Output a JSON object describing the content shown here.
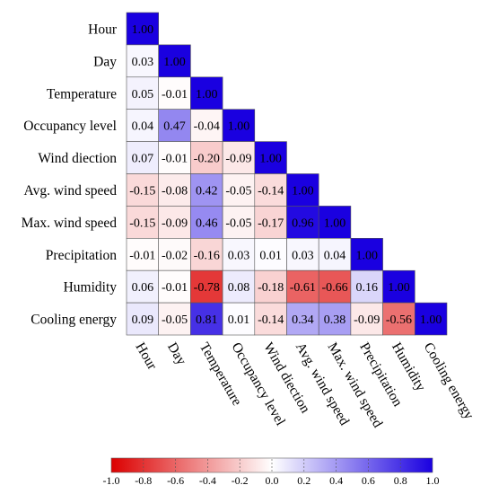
{
  "chart_data": {
    "type": "heatmap",
    "variables": [
      "Hour",
      "Day",
      "Temperature",
      "Occupancy level",
      "Wind diection",
      "Avg. wind speed",
      "Max. wind speed",
      "Precipitation",
      "Humidity",
      "Cooling energy"
    ],
    "matrix": [
      [
        1.0
      ],
      [
        0.03,
        1.0
      ],
      [
        0.05,
        -0.01,
        1.0
      ],
      [
        0.04,
        0.47,
        -0.04,
        1.0
      ],
      [
        0.07,
        -0.01,
        -0.2,
        -0.09,
        1.0
      ],
      [
        -0.15,
        -0.08,
        0.42,
        -0.05,
        -0.14,
        1.0
      ],
      [
        -0.15,
        -0.09,
        0.46,
        -0.05,
        -0.17,
        0.96,
        1.0
      ],
      [
        -0.01,
        -0.02,
        -0.16,
        0.03,
        0.01,
        0.03,
        0.04,
        1.0
      ],
      [
        0.06,
        -0.01,
        -0.78,
        0.08,
        -0.18,
        -0.61,
        -0.66,
        0.16,
        1.0
      ],
      [
        0.09,
        -0.05,
        0.81,
        0.01,
        -0.14,
        0.34,
        0.38,
        -0.09,
        -0.56,
        1.0
      ]
    ],
    "colorbar": {
      "ticks": [
        "-1.0",
        "-0.8",
        "-0.6",
        "-0.4",
        "-0.2",
        "0.0",
        "0.2",
        "0.4",
        "0.6",
        "0.8",
        "1.0"
      ],
      "range": [
        -1.0,
        1.0
      ]
    },
    "colors": {
      "negative": "#dc0000",
      "neutral": "#ffffff",
      "positive": "#1a00e0"
    }
  }
}
